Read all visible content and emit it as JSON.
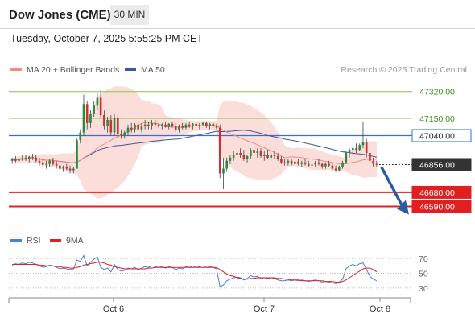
{
  "header": {
    "instrument": "Dow Jones (CME)",
    "timeframe": "30 MIN",
    "datetime": "Tuesday, October 7, 2025 5:55:25 PM CET"
  },
  "legend": {
    "ma20": {
      "label": "MA 20 + Bollinger Bands",
      "color": "#f28b82"
    },
    "ma50": {
      "label": "MA 50",
      "color": "#3b5998"
    },
    "credit": "Research © 2025 Trading Central"
  },
  "colors": {
    "bull": "#2a8a3e",
    "bear": "#c83232",
    "band_fill": "#fbd9d6",
    "resistance": "#8bc34a",
    "pivot": "#2f6fe0",
    "support": "#e02020",
    "current_price": "#333333",
    "arrow": "#2d5aa0",
    "rsi": "#4a7fd9",
    "rsi_ma": "#e02020"
  },
  "chart_data": [
    {
      "type": "candlestick",
      "title": "Dow Jones (CME) 30 MIN",
      "ylim": [
        46470,
        47390
      ],
      "x_ticks": [
        "Oct 6",
        "Oct 7",
        "Oct 8"
      ],
      "price_levels": [
        {
          "label": "47320.00",
          "value": 47320,
          "kind": "resistance"
        },
        {
          "label": "47150.00",
          "value": 47150,
          "kind": "resistance"
        },
        {
          "label": "47040.00",
          "value": 47040,
          "kind": "pivot"
        },
        {
          "label": "46856.00",
          "value": 46856,
          "kind": "current"
        },
        {
          "label": "46680.00",
          "value": 46680,
          "kind": "support"
        },
        {
          "label": "46590.00",
          "value": 46590,
          "kind": "support"
        }
      ],
      "projection": {
        "direction": "down",
        "from": 46860,
        "to": 46600
      },
      "series": [
        {
          "name": "MA 20 + Bollinger Bands",
          "kind": "ma20_bands"
        },
        {
          "name": "MA 50",
          "kind": "ma50"
        }
      ],
      "candles": [
        [
          46880,
          46900,
          46860,
          46890
        ],
        [
          46890,
          46910,
          46870,
          46880
        ],
        [
          46880,
          46900,
          46860,
          46895
        ],
        [
          46895,
          46920,
          46880,
          46900
        ],
        [
          46900,
          46920,
          46880,
          46890
        ],
        [
          46890,
          46910,
          46870,
          46905
        ],
        [
          46905,
          46925,
          46885,
          46900
        ],
        [
          46900,
          46920,
          46870,
          46880
        ],
        [
          46880,
          46900,
          46850,
          46870
        ],
        [
          46870,
          46890,
          46840,
          46855
        ],
        [
          46855,
          46880,
          46830,
          46860
        ],
        [
          46860,
          46890,
          46840,
          46880
        ],
        [
          46880,
          46900,
          46850,
          46860
        ],
        [
          46860,
          46880,
          46830,
          46850
        ],
        [
          46850,
          46870,
          46820,
          46830
        ],
        [
          46830,
          46850,
          46810,
          46840
        ],
        [
          46840,
          46860,
          46820,
          46830
        ],
        [
          46830,
          46850,
          46800,
          46820
        ],
        [
          46820,
          46840,
          46800,
          46830
        ],
        [
          46830,
          47020,
          46830,
          47010
        ],
        [
          47010,
          47080,
          46990,
          47060
        ],
        [
          47060,
          47300,
          47040,
          47240
        ],
        [
          47240,
          47260,
          47080,
          47120
        ],
        [
          47120,
          47200,
          47090,
          47180
        ],
        [
          47180,
          47260,
          47160,
          47230
        ],
        [
          47230,
          47310,
          47200,
          47280
        ],
        [
          47280,
          47330,
          47150,
          47170
        ],
        [
          47170,
          47200,
          47080,
          47100
        ],
        [
          47100,
          47160,
          47060,
          47140
        ],
        [
          47140,
          47170,
          47040,
          47060
        ],
        [
          47060,
          47180,
          47040,
          47150
        ],
        [
          47150,
          47170,
          47030,
          47050
        ],
        [
          47050,
          47080,
          47020,
          47040
        ],
        [
          47040,
          47070,
          47020,
          47060
        ],
        [
          47060,
          47110,
          47040,
          47090
        ],
        [
          47090,
          47120,
          47060,
          47080
        ],
        [
          47080,
          47120,
          47060,
          47110
        ],
        [
          47110,
          47130,
          47070,
          47080
        ],
        [
          47080,
          47120,
          47060,
          47100
        ],
        [
          47100,
          47140,
          47080,
          47110
        ],
        [
          47110,
          47130,
          47080,
          47100
        ],
        [
          47100,
          47140,
          47080,
          47120
        ],
        [
          47120,
          47140,
          47100,
          47110
        ],
        [
          47110,
          47120,
          47090,
          47100
        ],
        [
          47100,
          47120,
          47080,
          47110
        ],
        [
          47110,
          47130,
          47090,
          47095
        ],
        [
          47095,
          47120,
          47080,
          47115
        ],
        [
          47115,
          47130,
          47090,
          47100
        ],
        [
          47100,
          47120,
          47060,
          47075
        ],
        [
          47075,
          47110,
          47060,
          47100
        ],
        [
          47100,
          47120,
          47080,
          47090
        ],
        [
          47090,
          47120,
          47080,
          47110
        ],
        [
          47110,
          47130,
          47090,
          47100
        ],
        [
          47100,
          47120,
          47080,
          47115
        ],
        [
          47115,
          47130,
          47090,
          47100
        ],
        [
          47100,
          47120,
          47080,
          47110
        ],
        [
          47110,
          47130,
          47100,
          47120
        ],
        [
          47120,
          47130,
          47090,
          47100
        ],
        [
          47100,
          47120,
          47080,
          47115
        ],
        [
          47115,
          47125,
          47090,
          47100
        ],
        [
          47100,
          47115,
          47080,
          47090
        ],
        [
          47090,
          47110,
          46770,
          46800
        ],
        [
          46800,
          46900,
          46700,
          46830
        ],
        [
          46830,
          46900,
          46810,
          46880
        ],
        [
          46880,
          46920,
          46860,
          46900
        ],
        [
          46900,
          46940,
          46880,
          46920
        ],
        [
          46920,
          46950,
          46890,
          46930
        ],
        [
          46930,
          46960,
          46900,
          46920
        ],
        [
          46920,
          46950,
          46880,
          46890
        ],
        [
          46890,
          46920,
          46870,
          46910
        ],
        [
          46910,
          46960,
          46890,
          46950
        ],
        [
          46950,
          46970,
          46920,
          46930
        ],
        [
          46930,
          46960,
          46900,
          46940
        ],
        [
          46940,
          46960,
          46900,
          46910
        ],
        [
          46910,
          46940,
          46880,
          46920
        ],
        [
          46920,
          46950,
          46890,
          46900
        ],
        [
          46900,
          46930,
          46880,
          46920
        ],
        [
          46920,
          46940,
          46890,
          46910
        ],
        [
          46910,
          46930,
          46880,
          46890
        ],
        [
          46890,
          46910,
          46860,
          46870
        ],
        [
          46870,
          46890,
          46850,
          46865
        ],
        [
          46865,
          46890,
          46850,
          46880
        ],
        [
          46880,
          46890,
          46850,
          46860
        ],
        [
          46860,
          46880,
          46850,
          46875
        ],
        [
          46875,
          46890,
          46850,
          46860
        ],
        [
          46860,
          46880,
          46840,
          46870
        ],
        [
          46870,
          46890,
          46850,
          46860
        ],
        [
          46860,
          46880,
          46840,
          46850
        ],
        [
          46850,
          46870,
          46830,
          46855
        ],
        [
          46855,
          46880,
          46840,
          46870
        ],
        [
          46870,
          46890,
          46850,
          46860
        ],
        [
          46860,
          46870,
          46830,
          46845
        ],
        [
          46845,
          46870,
          46830,
          46860
        ],
        [
          46860,
          46880,
          46840,
          46850
        ],
        [
          46850,
          46870,
          46820,
          46830
        ],
        [
          46830,
          46850,
          46810,
          46820
        ],
        [
          46820,
          46850,
          46810,
          46840
        ],
        [
          46840,
          46880,
          46830,
          46870
        ],
        [
          46870,
          46940,
          46860,
          46930
        ],
        [
          46930,
          46960,
          46900,
          46950
        ],
        [
          46950,
          46980,
          46920,
          46960
        ],
        [
          46960,
          46990,
          46930,
          46950
        ],
        [
          46950,
          46990,
          46940,
          46980
        ],
        [
          46980,
          47130,
          46960,
          47000
        ],
        [
          47000,
          47020,
          46900,
          46930
        ],
        [
          46930,
          46940,
          46870,
          46880
        ],
        [
          46880,
          46900,
          46840,
          46860
        ],
        [
          46860,
          46880,
          46840,
          46856
        ]
      ]
    },
    {
      "type": "line",
      "title": "RSI",
      "ylim": [
        20,
        80
      ],
      "y_ticks": [
        70,
        50,
        30
      ],
      "series": [
        {
          "name": "RSI",
          "kind": "rsi",
          "values": [
            61,
            63,
            62,
            64,
            63,
            65,
            64,
            62,
            60,
            58,
            59,
            61,
            60,
            58,
            56,
            57,
            56,
            55,
            56,
            68,
            66,
            74,
            60,
            65,
            69,
            72,
            58,
            55,
            57,
            52,
            62,
            55,
            53,
            54,
            57,
            56,
            58,
            55,
            57,
            59,
            58,
            60,
            59,
            58,
            59,
            57,
            59,
            58,
            55,
            57,
            56,
            59,
            58,
            60,
            58,
            59,
            60,
            58,
            59,
            58,
            56,
            32,
            34,
            40,
            42,
            44,
            45,
            44,
            41,
            43,
            47,
            45,
            46,
            43,
            44,
            43,
            44,
            43,
            41,
            40,
            40,
            41,
            40,
            41,
            40,
            41,
            40,
            39,
            40,
            41,
            40,
            38,
            39,
            38,
            37,
            36,
            38,
            42,
            56,
            60,
            62,
            60,
            63,
            64,
            55,
            46,
            42,
            40
          ]
        },
        {
          "name": "9MA",
          "kind": "rsi_ma",
          "values": [
            62,
            62,
            62,
            62,
            62,
            62,
            62,
            62,
            61,
            61,
            60,
            60,
            60,
            59,
            59,
            58,
            58,
            57,
            57,
            58,
            59,
            61,
            62,
            63,
            64,
            65,
            65,
            64,
            62,
            61,
            59,
            58,
            57,
            56,
            56,
            56,
            56,
            56,
            56,
            56,
            57,
            57,
            58,
            58,
            58,
            58,
            58,
            58,
            58,
            58,
            58,
            58,
            58,
            58,
            58,
            58,
            58,
            58,
            58,
            58,
            58,
            55,
            52,
            49,
            47,
            46,
            44,
            43,
            42,
            42,
            43,
            43,
            44,
            44,
            44,
            44,
            44,
            44,
            43,
            43,
            42,
            42,
            41,
            41,
            41,
            40,
            40,
            40,
            40,
            40,
            40,
            40,
            39,
            39,
            39,
            38,
            38,
            39,
            41,
            44,
            47,
            50,
            53,
            56,
            57,
            57,
            55,
            52
          ]
        }
      ]
    }
  ]
}
